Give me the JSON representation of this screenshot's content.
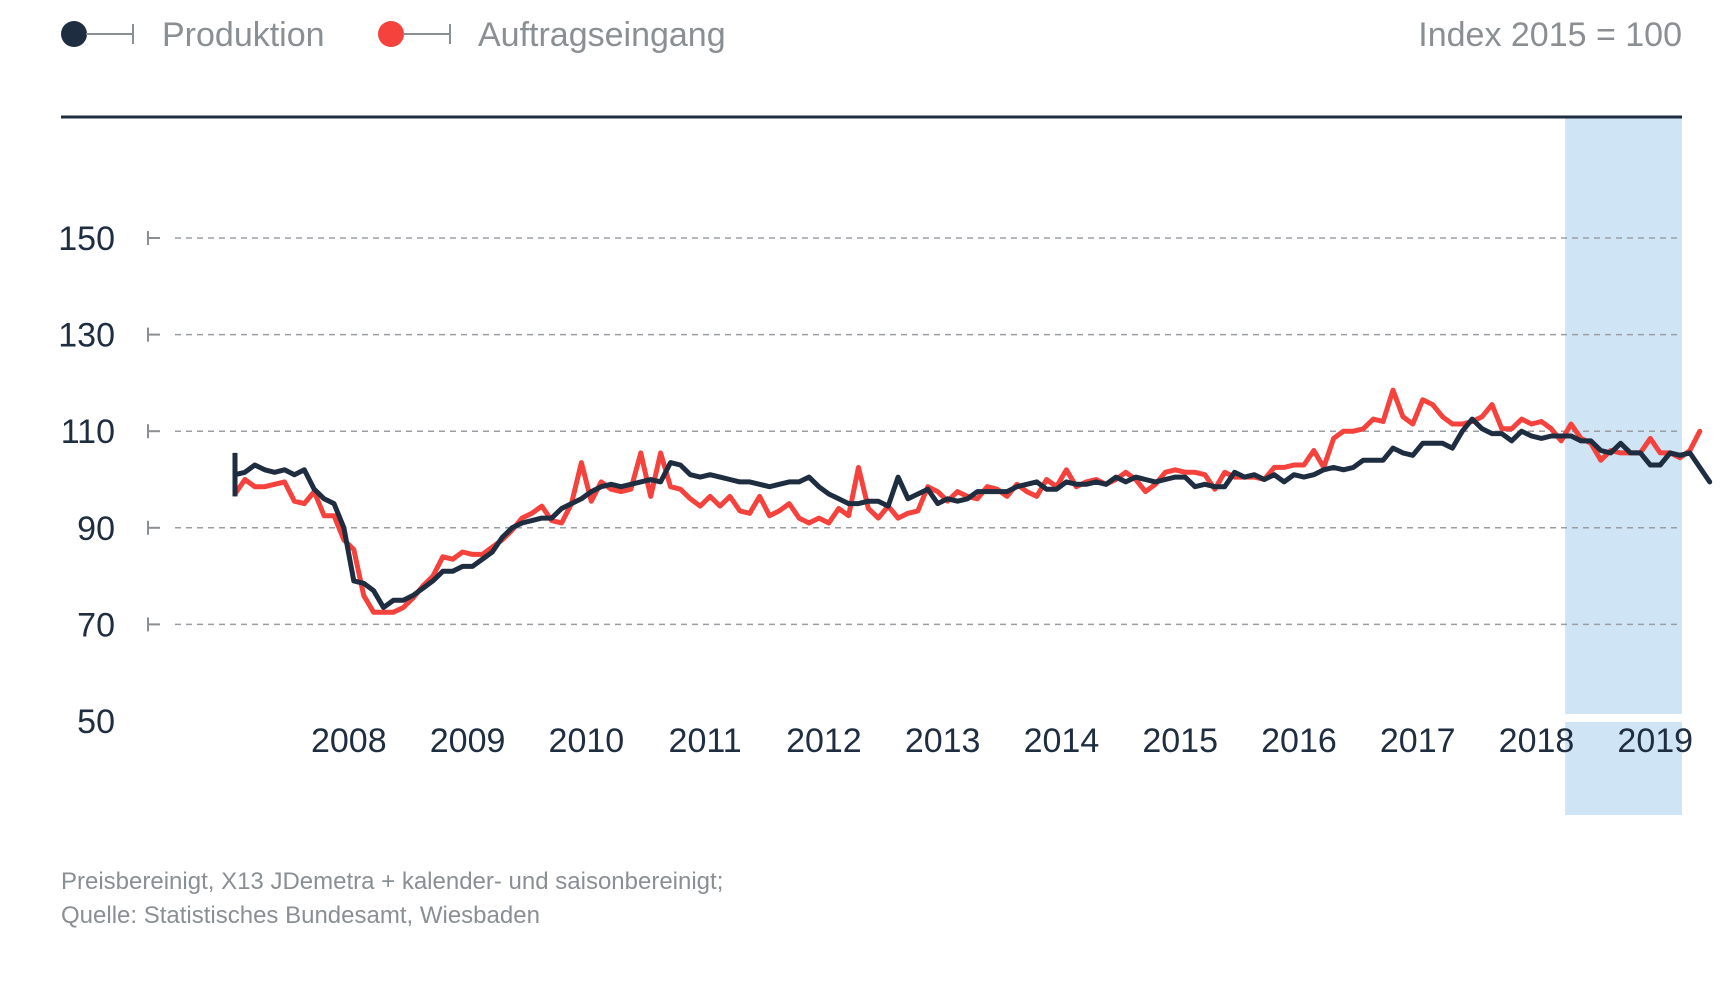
{
  "chart_data": {
    "type": "line",
    "unit_label": "Index 2015 = 100",
    "ylim": [
      50,
      150
    ],
    "y_ticks": [
      "150",
      "130",
      "110",
      "90",
      "70",
      "50"
    ],
    "x_range": [
      "2007-07",
      "2019-09"
    ],
    "x_tick_labels": [
      "2008",
      "2009",
      "2010",
      "2011",
      "2012",
      "2013",
      "2014",
      "2015",
      "2016",
      "2017",
      "2018",
      "2019"
    ],
    "highlight_range": [
      "2018-10",
      "2019-09"
    ],
    "grid": true,
    "legend_position": "top-left",
    "colors": {
      "produktion": "#1e2d40",
      "auftrag": "#f5423c",
      "highlight": "#cfe4f5",
      "grid": "#9a9ea3"
    },
    "series": [
      {
        "name": "Produktion",
        "start": "2007-07",
        "values": [
          101,
          101.5,
          103,
          102,
          101.5,
          102,
          101,
          102,
          98,
          96,
          95,
          90,
          79,
          78.5,
          77,
          73.5,
          75,
          75,
          76,
          77.5,
          79,
          81,
          81,
          82,
          82,
          83.5,
          85,
          88,
          90,
          91,
          91.5,
          92,
          92,
          94,
          95,
          96,
          97.5,
          98.5,
          99,
          98.5,
          99,
          99.5,
          100,
          99.5,
          103.5,
          103,
          101,
          100.5,
          101,
          100.5,
          100,
          99.5,
          99.5,
          99,
          98.5,
          99,
          99.5,
          99.5,
          100.5,
          98.5,
          97,
          96,
          95,
          95,
          95.5,
          95.5,
          94.5,
          100.5,
          96,
          97,
          98,
          95,
          96,
          95.5,
          96,
          97.5,
          97.5,
          97.5,
          97.5,
          98.5,
          99,
          99.5,
          98,
          98,
          99.5,
          99,
          99,
          99.5,
          99,
          100.5,
          99.5,
          100.5,
          100,
          99.5,
          100,
          100.5,
          100.5,
          98.5,
          99,
          98.5,
          98.5,
          101.5,
          100.5,
          101,
          100,
          101,
          99.5,
          101,
          100.5,
          101,
          102,
          102.5,
          102,
          102.5,
          104,
          104,
          104,
          106.5,
          105.5,
          105,
          107.5,
          107.5,
          107.5,
          106.5,
          110,
          112.5,
          110.5,
          109.5,
          109.5,
          108,
          110,
          109,
          108.5,
          109,
          109,
          109,
          108,
          108,
          106,
          105.5,
          107.5,
          105.5,
          105.5,
          103,
          103,
          105.5,
          105,
          105.5,
          102.5,
          99.5
        ]
      },
      {
        "name": "Auftragseingang",
        "start": "2007-07",
        "values": [
          97,
          100,
          98.5,
          98.5,
          99,
          99.5,
          95.5,
          95,
          97.5,
          92.5,
          92.5,
          87.5,
          85.5,
          76,
          72.5,
          72.5,
          72.5,
          73.5,
          75.5,
          78,
          80,
          84,
          83.5,
          85,
          84.5,
          84.5,
          86,
          87.5,
          89.5,
          92,
          93,
          94.5,
          91.5,
          91,
          95,
          103.5,
          95.5,
          99.5,
          98,
          97.5,
          98,
          105.5,
          96.5,
          105.5,
          98.5,
          98,
          96,
          94.5,
          96.5,
          94.5,
          96.5,
          93.5,
          93,
          96.5,
          92.5,
          93.5,
          95,
          92,
          91,
          92,
          91,
          94,
          92.5,
          102.5,
          94,
          92,
          94.5,
          92,
          93,
          93.5,
          98.5,
          97.5,
          95.5,
          97.5,
          96.5,
          96,
          98.5,
          98,
          96.5,
          99,
          97.5,
          96.5,
          100,
          98.5,
          102,
          98.5,
          99.5,
          100,
          99,
          100,
          101.5,
          100,
          97.5,
          99,
          101.5,
          102,
          101.5,
          101.5,
          101,
          98,
          101.5,
          100.5,
          100.5,
          100.5,
          100,
          102.5,
          102.5,
          103,
          103,
          106,
          102.5,
          108.5,
          110,
          110,
          110.5,
          112.5,
          112,
          118.5,
          113,
          111.5,
          116.5,
          115.5,
          113,
          111.5,
          111.5,
          112,
          113,
          115.5,
          110.5,
          110.5,
          112.5,
          111.5,
          112,
          110.5,
          108,
          111.5,
          108.5,
          107.5,
          104,
          106,
          105.5,
          105.5,
          105.5,
          108.5,
          105.5,
          105.5,
          104.5,
          106,
          110
        ]
      }
    ]
  },
  "legend": [
    {
      "label": "Produktion",
      "color": "#1e2d40"
    },
    {
      "label": "Auftragseingang",
      "color": "#f5423c"
    }
  ],
  "notes": {
    "line1": "Preisbereinigt, X13 JDemetra + kalender- und saisonbereinigt;",
    "line2": "Quelle: Statistisches Bundesamt, Wiesbaden"
  }
}
